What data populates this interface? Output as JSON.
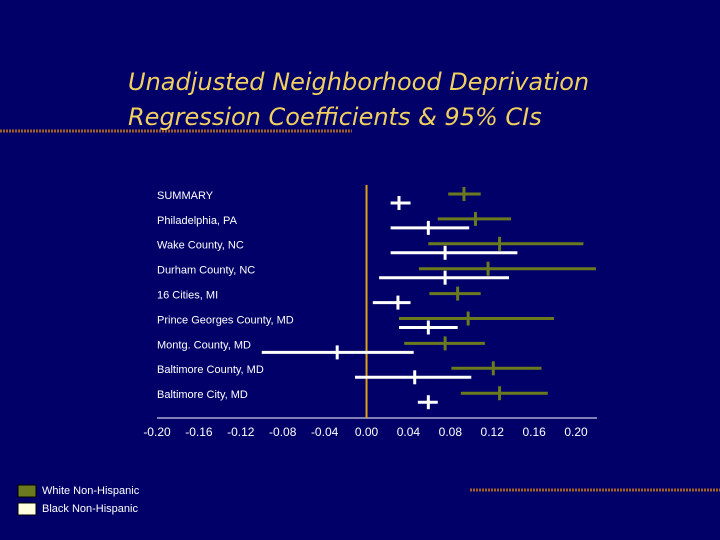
{
  "chart_data": {
    "type": "forest",
    "title": [
      "Unadjusted Neighborhood Deprivation",
      "Regression Coefficients & 95% CIs"
    ],
    "categories": [
      "SUMMARY",
      "Philadelphia, PA",
      "Wake County, NC",
      "Durham County, NC",
      "16 Cities, MI",
      "Prince Georges County, MD",
      "Montg. County, MD",
      "Baltimore County, MD",
      "Baltimore City, MD"
    ],
    "series": [
      {
        "name": "White Non-Hispanic",
        "color": "#6b7a1e",
        "values": [
          0.093,
          0.104,
          0.127,
          0.116,
          0.087,
          0.097,
          0.075,
          0.121,
          0.127
        ],
        "lower": [
          0.078,
          0.068,
          0.059,
          0.05,
          0.06,
          0.031,
          0.036,
          0.081,
          0.09
        ],
        "upper": [
          0.109,
          0.138,
          0.207,
          0.219,
          0.109,
          0.179,
          0.113,
          0.167,
          0.173
        ]
      },
      {
        "name": "Black Non-Hispanic",
        "color": "#ffffff",
        "values": [
          0.031,
          0.059,
          0.075,
          0.075,
          0.03,
          0.059,
          -0.028,
          0.046,
          0.059
        ],
        "lower": [
          0.023,
          0.023,
          0.023,
          0.012,
          0.006,
          0.031,
          -0.1,
          -0.011,
          0.049
        ],
        "upper": [
          0.042,
          0.098,
          0.144,
          0.136,
          0.042,
          0.087,
          0.045,
          0.1,
          0.068
        ]
      }
    ],
    "xlim": [
      -0.2,
      0.22
    ],
    "xticks": [
      {
        "value": -0.2,
        "label": "-0.20"
      },
      {
        "value": -0.16,
        "label": "-0.16"
      },
      {
        "value": -0.12,
        "label": "-0.12"
      },
      {
        "value": -0.08,
        "label": "-0.08"
      },
      {
        "value": -0.04,
        "label": "-0.04"
      },
      {
        "value": 0,
        "label": "0.00"
      },
      {
        "value": 0.04,
        "label": "0.04"
      },
      {
        "value": 0.08,
        "label": "0.08"
      },
      {
        "value": 0.12,
        "label": "0.12"
      },
      {
        "value": 0.16,
        "label": "0.16"
      },
      {
        "value": 0.2,
        "label": "0.20"
      }
    ],
    "reference_line": 0,
    "reference_color": "#e0a010",
    "legend": "bottom-left"
  }
}
